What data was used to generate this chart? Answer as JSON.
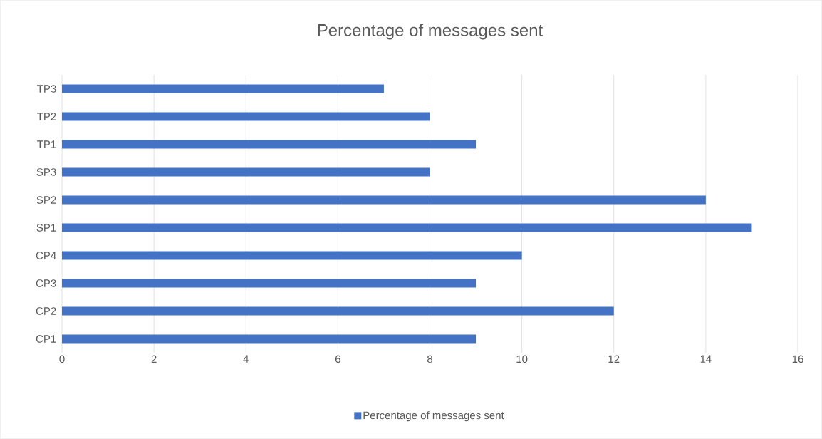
{
  "chart_data": {
    "type": "bar",
    "orientation": "horizontal",
    "title": "Percentage of messages sent",
    "categories": [
      "TP3",
      "TP2",
      "TP1",
      "SP3",
      "SP2",
      "SP1",
      "CP4",
      "CP3",
      "CP2",
      "CP1"
    ],
    "series": [
      {
        "name": "Percentage of messages sent",
        "color": "#4472c4",
        "values": [
          7,
          8,
          9,
          8,
          14,
          15,
          10,
          9,
          12,
          9
        ]
      }
    ],
    "xlim": [
      0,
      16
    ],
    "xticks": [
      0,
      2,
      4,
      6,
      8,
      10,
      12,
      14,
      16
    ],
    "grid": "x",
    "legend": "bottom"
  }
}
